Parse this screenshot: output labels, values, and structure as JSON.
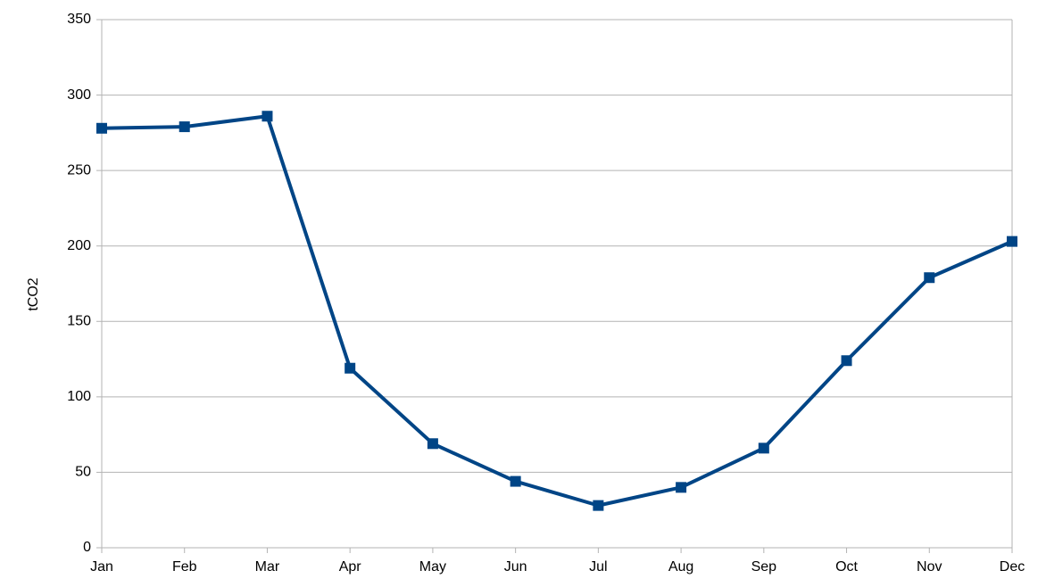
{
  "chart_data": {
    "type": "line",
    "y_label": "tCO2",
    "categories": [
      "Jan",
      "Feb",
      "Mar",
      "Apr",
      "May",
      "Jun",
      "Jul",
      "Aug",
      "Sep",
      "Oct",
      "Nov",
      "Dec"
    ],
    "series": [
      {
        "name": "tCO2",
        "color": "#004586",
        "values": [
          278,
          279,
          286,
          119,
          69,
          44,
          28,
          40,
          66,
          124,
          179,
          203
        ]
      }
    ],
    "ylim": [
      0,
      350
    ],
    "yticks": [
      0,
      50,
      100,
      150,
      200,
      250,
      300,
      350
    ],
    "grid": true
  }
}
